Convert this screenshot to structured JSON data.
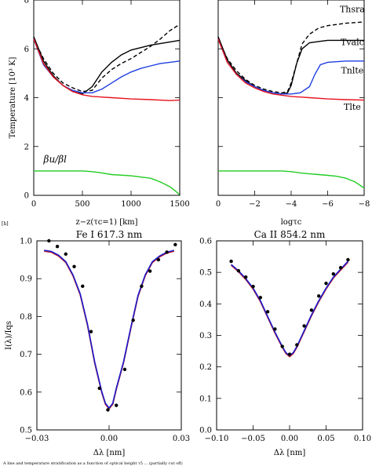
{
  "figure_label": "[h]",
  "caption": "A line and temperature stratification as a function of optical height τ5 ... (partially cut off)",
  "colors": {
    "black": "#000000",
    "blue": "#1f3fe0",
    "red": "#e8141e",
    "green": "#22cc22",
    "fit": "#1a1acc",
    "obs_dip": "#cc2020"
  },
  "chart_data": [
    {
      "type": "line",
      "ylabel": "Temperature [10³ K]",
      "xlabel": "z−z(τc=1) [km]",
      "xlim": [
        0,
        1500
      ],
      "ylim": [
        0,
        8
      ],
      "xticks": [
        "0",
        "500",
        "1000",
        "1500"
      ],
      "yticks": [
        "0",
        "2",
        "4",
        "6",
        "8"
      ],
      "series": [
        {
          "name": "Thsra",
          "style": "dashed",
          "color": "#000000",
          "x": [
            0,
            100,
            200,
            300,
            400,
            500,
            600,
            700,
            800,
            900,
            1000,
            1100,
            1200,
            1300,
            1400,
            1500
          ],
          "y": [
            6.4,
            5.6,
            5.0,
            4.6,
            4.4,
            4.25,
            4.3,
            4.8,
            5.15,
            5.4,
            5.6,
            5.85,
            6.1,
            6.4,
            6.75,
            7.0
          ]
        },
        {
          "name": "Tvalc",
          "style": "solid",
          "color": "#000000",
          "x": [
            0,
            100,
            200,
            300,
            400,
            500,
            600,
            700,
            800,
            900,
            1000,
            1200,
            1500
          ],
          "y": [
            6.5,
            5.5,
            4.9,
            4.5,
            4.25,
            4.15,
            4.45,
            5.05,
            5.45,
            5.75,
            5.95,
            6.15,
            6.35
          ]
        },
        {
          "name": "Tnlte",
          "style": "solid",
          "color": "#1f3fe0",
          "x": [
            0,
            100,
            200,
            300,
            400,
            500,
            600,
            700,
            800,
            900,
            1000,
            1100,
            1200,
            1300,
            1400,
            1500
          ],
          "y": [
            6.4,
            5.35,
            4.85,
            4.5,
            4.3,
            4.2,
            4.2,
            4.35,
            4.6,
            4.85,
            5.05,
            5.2,
            5.3,
            5.4,
            5.45,
            5.5
          ]
        },
        {
          "name": "Tlte",
          "style": "solid",
          "color": "#e8141e",
          "x": [
            0,
            100,
            200,
            300,
            400,
            500,
            600,
            800,
            1000,
            1200,
            1400,
            1500
          ],
          "y": [
            6.4,
            5.4,
            4.85,
            4.5,
            4.25,
            4.12,
            4.05,
            4.0,
            3.95,
            3.92,
            3.88,
            3.9
          ]
        },
        {
          "name": "βu/βl",
          "style": "solid",
          "color": "#22cc22",
          "x": [
            0,
            200,
            500,
            600,
            700,
            800,
            1000,
            1200,
            1300,
            1400,
            1450,
            1500
          ],
          "y": [
            1.0,
            1.0,
            1.0,
            0.97,
            0.92,
            0.85,
            0.8,
            0.7,
            0.55,
            0.35,
            0.2,
            0.02
          ]
        }
      ],
      "annotation": "βu/βl"
    },
    {
      "type": "line",
      "xlabel": "logτc",
      "xlim": [
        0,
        -8
      ],
      "ylim": [
        0,
        8
      ],
      "xticks": [
        "0",
        "−2",
        "−4",
        "−6",
        "−8"
      ],
      "series": [
        {
          "name": "Thsra",
          "style": "dashed",
          "color": "#000000",
          "x": [
            0,
            -0.5,
            -1,
            -1.5,
            -2,
            -2.5,
            -3,
            -3.5,
            -3.8,
            -4.0,
            -4.3,
            -4.6,
            -5.0,
            -5.5,
            -6.0,
            -7.0,
            -8.0
          ],
          "y": [
            6.4,
            5.6,
            5.1,
            4.75,
            4.5,
            4.35,
            4.25,
            4.2,
            4.25,
            4.6,
            5.4,
            6.2,
            6.6,
            6.85,
            6.95,
            7.05,
            7.1
          ]
        },
        {
          "name": "Tvalc",
          "style": "solid",
          "color": "#000000",
          "x": [
            0,
            -0.5,
            -1,
            -1.5,
            -2,
            -2.5,
            -3,
            -3.5,
            -3.8,
            -4.0,
            -4.3,
            -4.6,
            -5.0,
            -5.5,
            -6.0,
            -7.0,
            -8.0
          ],
          "y": [
            6.5,
            5.55,
            5.0,
            4.7,
            4.45,
            4.3,
            4.2,
            4.15,
            4.2,
            4.5,
            5.4,
            6.0,
            6.25,
            6.3,
            6.35,
            6.35,
            6.35
          ]
        },
        {
          "name": "Tnlte",
          "style": "solid",
          "color": "#1f3fe0",
          "x": [
            0,
            -0.5,
            -1,
            -1.5,
            -2,
            -2.5,
            -3,
            -3.5,
            -4.0,
            -4.5,
            -5.0,
            -5.3,
            -5.6,
            -6.0,
            -7.0,
            -8.0
          ],
          "y": [
            6.4,
            5.45,
            4.95,
            4.65,
            4.45,
            4.3,
            4.2,
            4.15,
            4.15,
            4.2,
            4.45,
            4.95,
            5.35,
            5.45,
            5.5,
            5.5
          ]
        },
        {
          "name": "Tlte",
          "style": "solid",
          "color": "#e8141e",
          "x": [
            0,
            -0.5,
            -1,
            -1.5,
            -2,
            -2.5,
            -3,
            -3.5,
            -4,
            -5,
            -6,
            -7,
            -8
          ],
          "y": [
            6.4,
            5.45,
            4.95,
            4.6,
            4.4,
            4.25,
            4.15,
            4.1,
            4.05,
            4.0,
            3.95,
            3.92,
            3.9
          ]
        },
        {
          "name": "βu/βl",
          "style": "solid",
          "color": "#22cc22",
          "x": [
            0,
            -2,
            -3.5,
            -4.0,
            -4.5,
            -5.0,
            -5.5,
            -6.0,
            -6.5,
            -7.0,
            -7.5,
            -8.0
          ],
          "y": [
            1.0,
            1.0,
            1.0,
            0.97,
            0.92,
            0.88,
            0.85,
            0.82,
            0.78,
            0.7,
            0.55,
            0.3
          ]
        }
      ],
      "labels": [
        "Thsra",
        "Tvalc",
        "Tnlte",
        "Tlte"
      ]
    },
    {
      "type": "line",
      "title": "Fe I 617.3 nm",
      "xlabel": "Δλ [nm]",
      "ylabel": "I(λ)/Iqs",
      "xlim": [
        -0.03,
        0.03
      ],
      "ylim": [
        0.5,
        1.0
      ],
      "xticks": [
        "−0.03",
        "0.00",
        "0.03"
      ],
      "yticks": [
        "0.5",
        "0.6",
        "0.7",
        "0.8",
        "0.9",
        "1.0"
      ],
      "observed_points": {
        "x": [
          -0.025,
          -0.0215,
          -0.018,
          -0.0145,
          -0.011,
          -0.0075,
          -0.004,
          -0.0005,
          0.003,
          0.0065,
          0.01,
          0.0135,
          0.017,
          0.0205,
          0.024,
          0.0275
        ],
        "y": [
          1.0,
          0.985,
          0.965,
          0.932,
          0.88,
          0.76,
          0.61,
          0.553,
          0.565,
          0.66,
          0.79,
          0.88,
          0.92,
          0.95,
          0.97,
          0.99
        ]
      },
      "fit": {
        "x": [
          -0.027,
          -0.024,
          -0.021,
          -0.018,
          -0.015,
          -0.012,
          -0.009,
          -0.006,
          -0.003,
          -0.0015,
          0.0,
          0.0015,
          0.003,
          0.006,
          0.009,
          0.012,
          0.015,
          0.018,
          0.021,
          0.024,
          0.027
        ],
        "y": [
          0.975,
          0.972,
          0.962,
          0.945,
          0.91,
          0.86,
          0.78,
          0.68,
          0.6,
          0.57,
          0.558,
          0.57,
          0.61,
          0.68,
          0.77,
          0.855,
          0.91,
          0.945,
          0.96,
          0.97,
          0.975
        ]
      }
    },
    {
      "type": "line",
      "title": "Ca II 854.2 nm",
      "xlabel": "Δλ [nm]",
      "xlim": [
        -0.1,
        0.1
      ],
      "ylim": [
        0.0,
        0.6
      ],
      "xticks": [
        "−0.10",
        "−0.05",
        "0.00",
        "0.05",
        "0.10"
      ],
      "yticks": [
        "0.0",
        "0.1",
        "0.2",
        "0.3",
        "0.4",
        "0.5",
        "0.6"
      ],
      "observed_points": {
        "x": [
          -0.08,
          -0.07,
          -0.06,
          -0.05,
          -0.04,
          -0.03,
          -0.02,
          -0.01,
          0.0,
          0.01,
          0.02,
          0.03,
          0.04,
          0.05,
          0.06,
          0.07,
          0.08
        ],
        "y": [
          0.535,
          0.505,
          0.485,
          0.455,
          0.42,
          0.375,
          0.32,
          0.265,
          0.24,
          0.27,
          0.33,
          0.38,
          0.425,
          0.465,
          0.495,
          0.515,
          0.54
        ]
      },
      "fit": {
        "x": [
          -0.08,
          -0.07,
          -0.06,
          -0.05,
          -0.04,
          -0.03,
          -0.02,
          -0.01,
          -0.005,
          0.0,
          0.005,
          0.01,
          0.02,
          0.03,
          0.04,
          0.05,
          0.06,
          0.07,
          0.08
        ],
        "y": [
          0.525,
          0.505,
          0.48,
          0.45,
          0.41,
          0.36,
          0.31,
          0.265,
          0.245,
          0.235,
          0.245,
          0.265,
          0.315,
          0.365,
          0.41,
          0.45,
          0.485,
          0.51,
          0.535
        ]
      }
    }
  ]
}
